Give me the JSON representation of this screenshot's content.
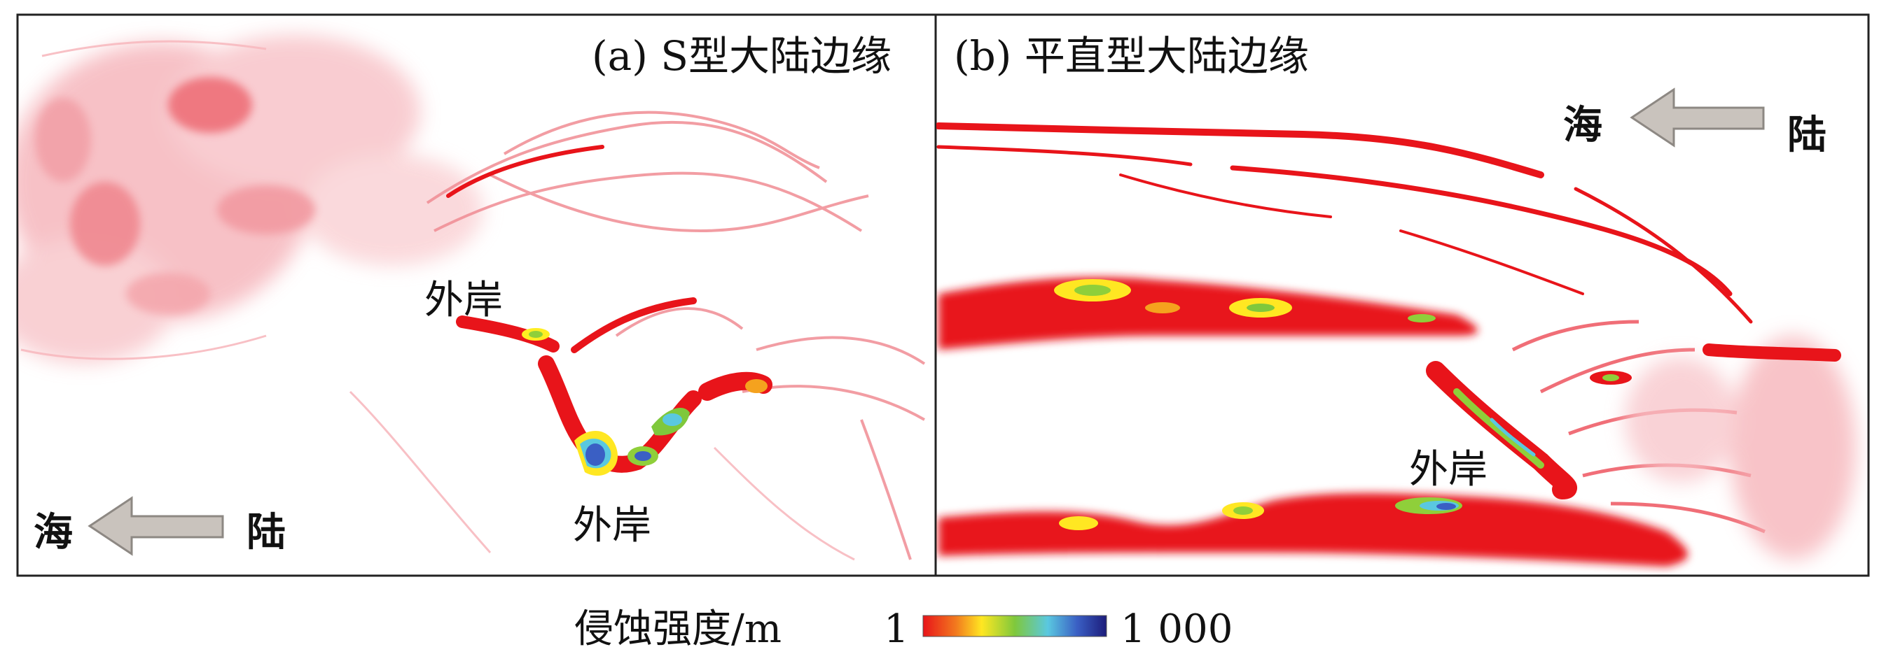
{
  "panel_a": {
    "title": "(a) S型大陆边缘",
    "outer_bank_label_1": "外岸",
    "outer_bank_label_2": "外岸",
    "sea_label": "海",
    "land_label": "陆"
  },
  "panel_b": {
    "title": "(b) 平直型大陆边缘",
    "outer_bank_label": "外岸",
    "sea_label": "海",
    "land_label": "陆"
  },
  "colorbar": {
    "title": "侵蚀强度/m",
    "min_label": "1",
    "max_label": "1 000",
    "colors": [
      "#e8141a",
      "#f5a21e",
      "#ffee22",
      "#8fcf3a",
      "#5ac8e0",
      "#3a5fc4",
      "#1c1c7a"
    ]
  },
  "colors": {
    "erosion_light": "#f4a0a8",
    "erosion_mid": "#ee5560",
    "erosion_strong": "#e8141a",
    "arrow_fill": "#c9c3bd",
    "arrow_stroke": "#8d8883",
    "frame": "#222222"
  }
}
